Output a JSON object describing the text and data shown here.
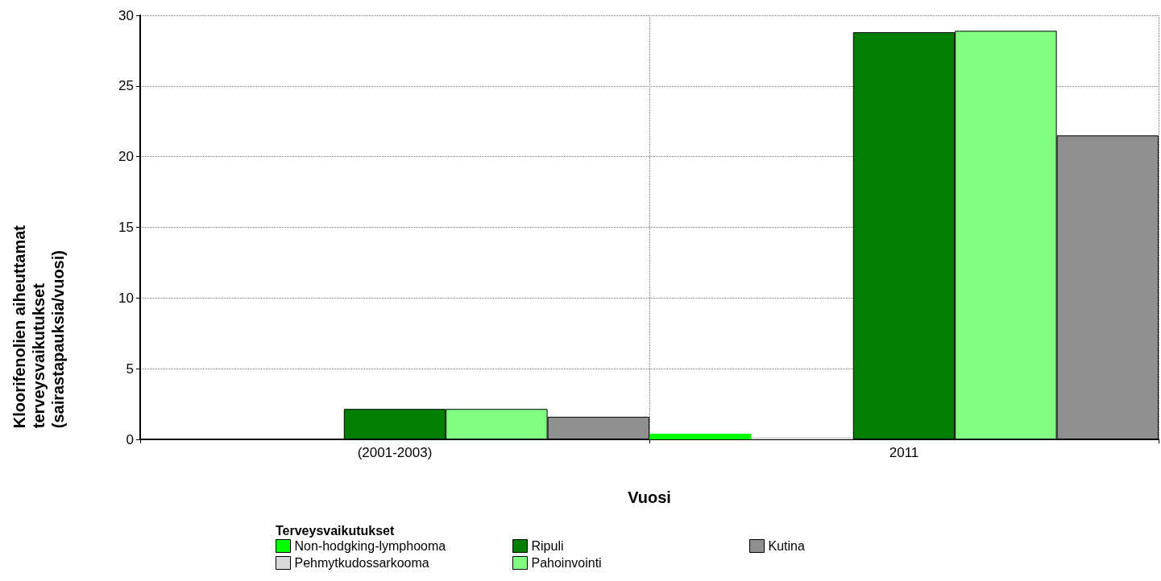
{
  "chart_data": {
    "type": "bar",
    "xlabel": "Vuosi",
    "ylabel": "Kloorifenolien aiheuttamat\nterveysvaikutukset\n(sairastapauksia/vuosi)",
    "legend_title": "Terveysvaikutukset",
    "categories": [
      "(2001-2003)",
      "2011"
    ],
    "series": [
      {
        "name": "Non-hodgking-lymphooma",
        "color": "#00ff00",
        "values": [
          null,
          0.4
        ]
      },
      {
        "name": "Pehmytkudossarkooma",
        "color": "#d9d9d9",
        "values": [
          0,
          0.15
        ]
      },
      {
        "name": "Ripuli",
        "color": "#007f00",
        "values": [
          2.15,
          28.8
        ]
      },
      {
        "name": "Pahoinvointi",
        "color": "#80ff80",
        "values": [
          2.15,
          28.9
        ]
      },
      {
        "name": "Kutina",
        "color": "#8f8f8f",
        "values": [
          1.6,
          21.5
        ]
      }
    ],
    "ylim": [
      0,
      30
    ],
    "yticks": [
      0,
      5,
      10,
      15,
      20,
      25,
      30
    ],
    "grid": true,
    "legend": "bottom"
  }
}
